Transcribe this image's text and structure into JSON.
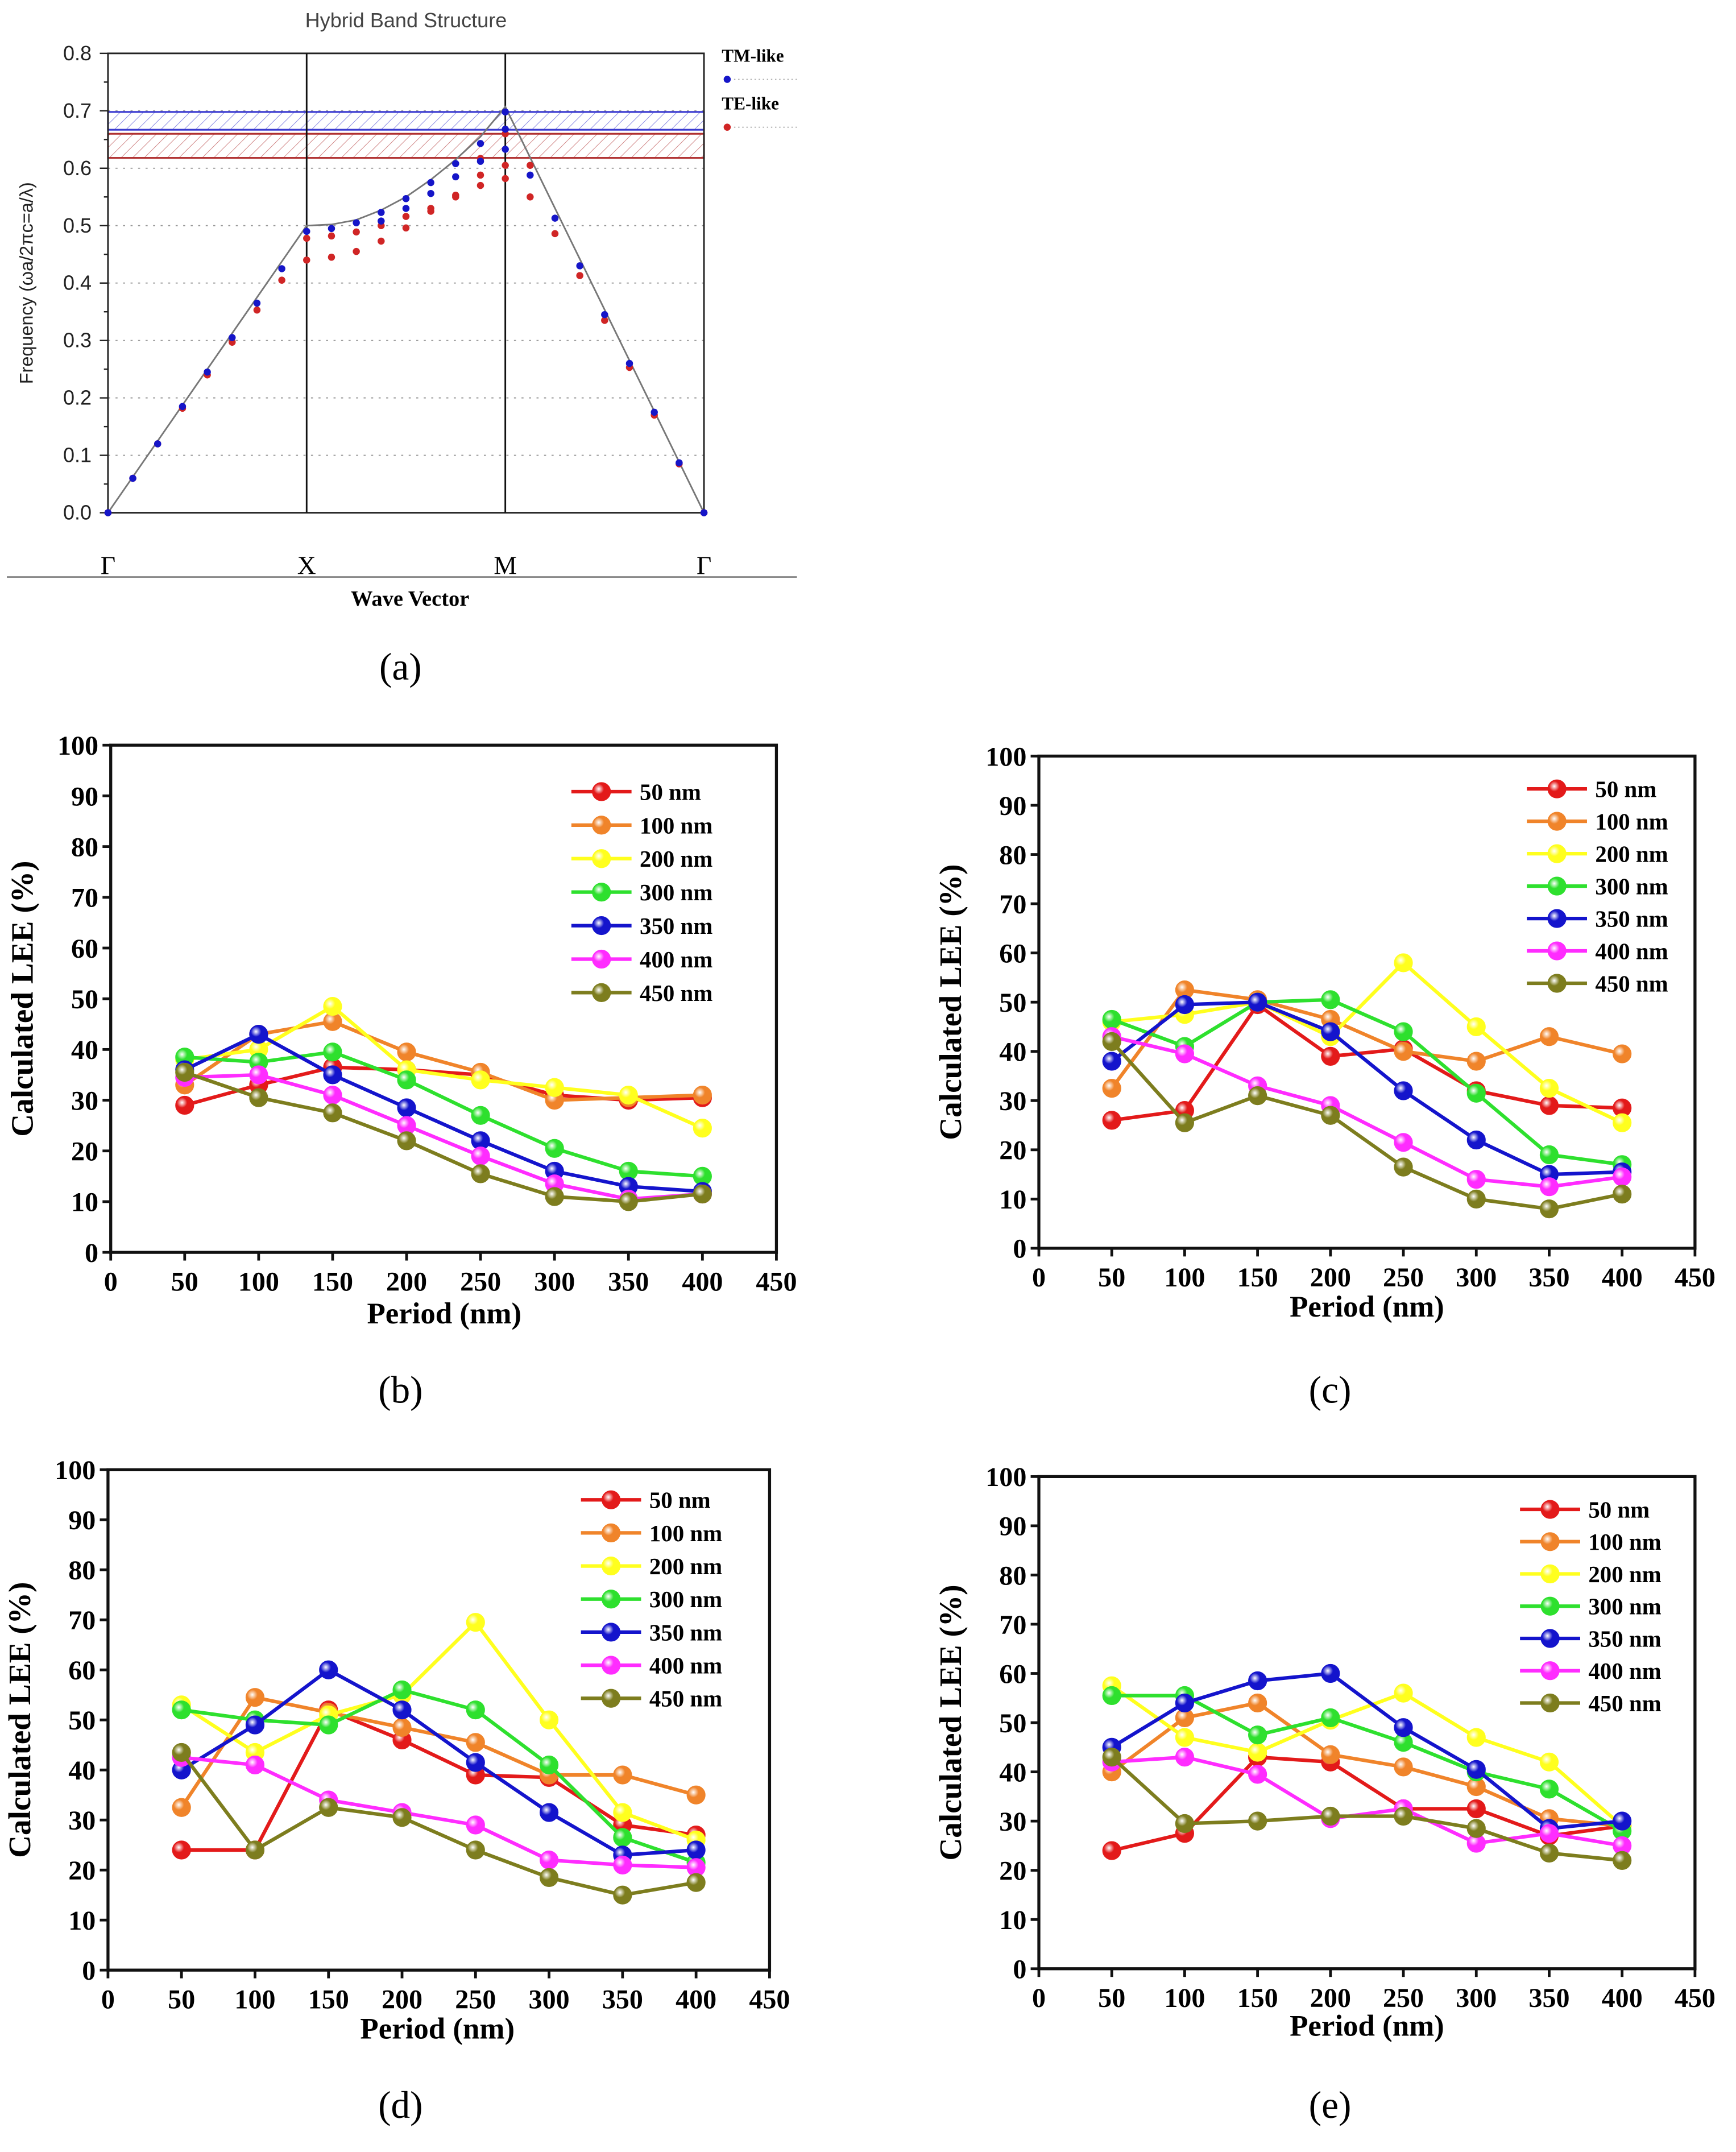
{
  "chart_data": [
    {
      "id": "a",
      "type": "scatter",
      "panel_label": "(a)",
      "title": "Hybrid Band Structure",
      "xlabel": "Wave Vector",
      "ylabel": "Frequency (ωa/2πc=a/λ)",
      "ylim": [
        0,
        0.8
      ],
      "yticks": [
        "0.0",
        "0.1",
        "0.2",
        "0.3",
        "0.4",
        "0.5",
        "0.6",
        "0.7",
        "0.8"
      ],
      "k_points": 24,
      "symmetry_points": [
        {
          "k": 0,
          "label": "Γ"
        },
        {
          "k": 8,
          "label": "X"
        },
        {
          "k": 16,
          "label": "M"
        },
        {
          "k": 24,
          "label": "Γ"
        }
      ],
      "grid": true,
      "legend_placement": "right-outside",
      "light_line": [
        [
          0,
          0
        ],
        [
          8,
          0.5
        ],
        [
          9,
          0.502
        ],
        [
          10,
          0.51
        ],
        [
          11,
          0.527
        ],
        [
          12,
          0.55
        ],
        [
          13,
          0.58
        ],
        [
          14,
          0.615
        ],
        [
          15,
          0.655
        ],
        [
          16,
          0.707
        ],
        [
          24,
          0
        ]
      ],
      "band_gaps": [
        {
          "name": "TM-like gap",
          "range": [
            0.667,
            0.698
          ],
          "color": "#3a3ad0"
        },
        {
          "name": "TE-like gap",
          "range": [
            0.618,
            0.66
          ],
          "color": "#b03030"
        }
      ],
      "series": [
        {
          "name": "TM-like",
          "color": "#1515c8",
          "points": [
            [
              0,
              0
            ],
            [
              1,
              0.06
            ],
            [
              2,
              0.12
            ],
            [
              3,
              0.185
            ],
            [
              4,
              0.245
            ],
            [
              5,
              0.305
            ],
            [
              6,
              0.365
            ],
            [
              7,
              0.425
            ],
            [
              8,
              0.49
            ],
            [
              9,
              0.495
            ],
            [
              10,
              0.505
            ],
            [
              11,
              0.523
            ],
            [
              12,
              0.547
            ],
            [
              13,
              0.575
            ],
            [
              14,
              0.608
            ],
            [
              15,
              0.643
            ],
            [
              16,
              0.698
            ],
            [
              16,
              0.668
            ],
            [
              16,
              0.633
            ],
            [
              11,
              0.508
            ],
            [
              12,
              0.53
            ],
            [
              13,
              0.556
            ],
            [
              14,
              0.585
            ],
            [
              15,
              0.612
            ],
            [
              17,
              0.588
            ],
            [
              18,
              0.513
            ],
            [
              19,
              0.43
            ],
            [
              20,
              0.345
            ],
            [
              21,
              0.26
            ],
            [
              22,
              0.175
            ],
            [
              23,
              0.087
            ],
            [
              24,
              0
            ]
          ]
        },
        {
          "name": "TE-like",
          "color": "#d02525",
          "points": [
            [
              0,
              0
            ],
            [
              1,
              0.06
            ],
            [
              2,
              0.12
            ],
            [
              3,
              0.182
            ],
            [
              4,
              0.24
            ],
            [
              5,
              0.297
            ],
            [
              6,
              0.353
            ],
            [
              7,
              0.405
            ],
            [
              8,
              0.478
            ],
            [
              8,
              0.44
            ],
            [
              9,
              0.482
            ],
            [
              9,
              0.445
            ],
            [
              10,
              0.489
            ],
            [
              10,
              0.455
            ],
            [
              11,
              0.5
            ],
            [
              11,
              0.473
            ],
            [
              12,
              0.516
            ],
            [
              12,
              0.496
            ],
            [
              13,
              0.53
            ],
            [
              13,
              0.525
            ],
            [
              14,
              0.553
            ],
            [
              14,
              0.55
            ],
            [
              15,
              0.617
            ],
            [
              15,
              0.588
            ],
            [
              15,
              0.57
            ],
            [
              16,
              0.66
            ],
            [
              16,
              0.605
            ],
            [
              16,
              0.582
            ],
            [
              17,
              0.605
            ],
            [
              17,
              0.55
            ],
            [
              18,
              0.486
            ],
            [
              19,
              0.413
            ],
            [
              20,
              0.335
            ],
            [
              21,
              0.253
            ],
            [
              22,
              0.17
            ],
            [
              23,
              0.085
            ],
            [
              24,
              0
            ]
          ]
        }
      ]
    },
    {
      "id": "b",
      "type": "line",
      "panel_label": "(b)",
      "xlabel": "Period (nm)",
      "ylabel": "Calculated LEE (%)",
      "xlim": [
        0,
        450
      ],
      "ylim": [
        0,
        100
      ],
      "legend_placement": "top-right",
      "xticks": [
        "0",
        "50",
        "100",
        "150",
        "200",
        "250",
        "300",
        "350",
        "400",
        "450"
      ],
      "yticks": [
        "0",
        "10",
        "20",
        "30",
        "40",
        "50",
        "60",
        "70",
        "80",
        "90",
        "100"
      ],
      "x": [
        50,
        100,
        150,
        200,
        250,
        300,
        350,
        400
      ],
      "series": [
        {
          "name": "50 nm",
          "color": "#e31a1a",
          "values": [
            29,
            33,
            36.5,
            36,
            35,
            31,
            30,
            30.5
          ]
        },
        {
          "name": "100 nm",
          "color": "#f0842a",
          "values": [
            33,
            43,
            45.5,
            39.5,
            35.5,
            30,
            30.5,
            31
          ]
        },
        {
          "name": "200 nm",
          "color": "#ffff1e",
          "values": [
            38,
            40,
            48.5,
            36,
            34,
            32.5,
            31,
            24.5
          ]
        },
        {
          "name": "300 nm",
          "color": "#2ee02e",
          "values": [
            38.5,
            37.5,
            39.5,
            34,
            27,
            20.5,
            16,
            15
          ]
        },
        {
          "name": "350 nm",
          "color": "#1414cc",
          "values": [
            36,
            43,
            35,
            28.5,
            22,
            16,
            13,
            12
          ]
        },
        {
          "name": "400 nm",
          "color": "#ff2cff",
          "values": [
            34.5,
            35,
            31,
            25,
            19,
            13.5,
            10.5,
            11.5
          ]
        },
        {
          "name": "450 nm",
          "color": "#7d7d1e",
          "values": [
            35.5,
            30.5,
            27.5,
            22,
            15.5,
            11,
            10,
            11.5
          ]
        }
      ]
    },
    {
      "id": "c",
      "type": "line",
      "panel_label": "(c)",
      "xlabel": "Period (nm)",
      "ylabel": "Calculated LEE (%)",
      "xlim": [
        0,
        450
      ],
      "ylim": [
        0,
        100
      ],
      "legend_placement": "top-right",
      "xticks": [
        "0",
        "50",
        "100",
        "150",
        "200",
        "250",
        "300",
        "350",
        "400",
        "450"
      ],
      "yticks": [
        "0",
        "10",
        "20",
        "30",
        "40",
        "50",
        "60",
        "70",
        "80",
        "90",
        "100"
      ],
      "x": [
        50,
        100,
        150,
        200,
        250,
        300,
        350,
        400
      ],
      "series": [
        {
          "name": "50 nm",
          "color": "#e31a1a",
          "values": [
            26,
            28,
            49.5,
            39,
            40.5,
            32,
            29,
            28.5
          ]
        },
        {
          "name": "100 nm",
          "color": "#f0842a",
          "values": [
            32.5,
            52.5,
            50.5,
            46.5,
            40,
            38,
            43,
            39.5
          ]
        },
        {
          "name": "200 nm",
          "color": "#ffff1e",
          "values": [
            46,
            47.5,
            50,
            43,
            58,
            45,
            32.5,
            25.5
          ]
        },
        {
          "name": "300 nm",
          "color": "#2ee02e",
          "values": [
            46.5,
            41,
            50,
            50.5,
            44,
            31.5,
            19,
            17
          ]
        },
        {
          "name": "350 nm",
          "color": "#1414cc",
          "values": [
            38,
            49.5,
            50,
            44,
            32,
            22,
            15,
            15.5
          ]
        },
        {
          "name": "400 nm",
          "color": "#ff2cff",
          "values": [
            43,
            39.5,
            33,
            29,
            21.5,
            14,
            12.5,
            14.5
          ]
        },
        {
          "name": "450 nm",
          "color": "#7d7d1e",
          "values": [
            42,
            25.5,
            31,
            27,
            16.5,
            10,
            8,
            11
          ]
        }
      ]
    },
    {
      "id": "d",
      "type": "line",
      "panel_label": "(d)",
      "xlabel": "Period (nm)",
      "ylabel": "Calculated LEE (%)",
      "xlim": [
        0,
        450
      ],
      "ylim": [
        0,
        100
      ],
      "legend_placement": "top-right",
      "xticks": [
        "0",
        "50",
        "100",
        "150",
        "200",
        "250",
        "300",
        "350",
        "400",
        "450"
      ],
      "yticks": [
        "0",
        "10",
        "20",
        "30",
        "40",
        "50",
        "60",
        "70",
        "80",
        "90",
        "100"
      ],
      "x": [
        50,
        100,
        150,
        200,
        250,
        300,
        350,
        400
      ],
      "series": [
        {
          "name": "50 nm",
          "color": "#e31a1a",
          "values": [
            24,
            24,
            52,
            46,
            39,
            38.5,
            29,
            27
          ]
        },
        {
          "name": "100 nm",
          "color": "#f0842a",
          "values": [
            32.5,
            54.5,
            51.5,
            48.5,
            45.5,
            39,
            39,
            35
          ]
        },
        {
          "name": "200 nm",
          "color": "#ffff1e",
          "values": [
            53,
            43.5,
            51,
            55,
            69.5,
            50,
            31.5,
            26
          ]
        },
        {
          "name": "300 nm",
          "color": "#2ee02e",
          "values": [
            52,
            50,
            49,
            56,
            52,
            41,
            26.5,
            21.5
          ]
        },
        {
          "name": "350 nm",
          "color": "#1414cc",
          "values": [
            40,
            49,
            60,
            52,
            41.5,
            31.5,
            23,
            24
          ]
        },
        {
          "name": "400 nm",
          "color": "#ff2cff",
          "values": [
            42.5,
            41,
            34,
            31.5,
            29,
            22,
            21,
            20.5
          ]
        },
        {
          "name": "450 nm",
          "color": "#7d7d1e",
          "values": [
            43.5,
            24,
            32.5,
            30.5,
            24,
            18.5,
            15,
            17.5
          ]
        }
      ]
    },
    {
      "id": "e",
      "type": "line",
      "panel_label": "(e)",
      "xlabel": "Period (nm)",
      "ylabel": "Calculated LEE (%)",
      "xlim": [
        0,
        450
      ],
      "ylim": [
        0,
        100
      ],
      "legend_placement": "top-right",
      "xticks": [
        "0",
        "50",
        "100",
        "150",
        "200",
        "250",
        "300",
        "350",
        "400",
        "450"
      ],
      "yticks": [
        "0",
        "10",
        "20",
        "30",
        "40",
        "50",
        "60",
        "70",
        "80",
        "90",
        "100"
      ],
      "x": [
        50,
        100,
        150,
        200,
        250,
        300,
        350,
        400
      ],
      "series": [
        {
          "name": "50 nm",
          "color": "#e31a1a",
          "values": [
            24,
            27.5,
            43,
            42,
            32.5,
            32.5,
            27,
            29
          ]
        },
        {
          "name": "100 nm",
          "color": "#f0842a",
          "values": [
            40,
            51,
            54,
            43.5,
            41,
            37,
            30.5,
            29
          ]
        },
        {
          "name": "200 nm",
          "color": "#ffff1e",
          "values": [
            57.5,
            47,
            44,
            50.5,
            56,
            47,
            42,
            29
          ]
        },
        {
          "name": "300 nm",
          "color": "#2ee02e",
          "values": [
            55.5,
            55.5,
            47.5,
            51,
            46,
            40,
            36.5,
            28
          ]
        },
        {
          "name": "350 nm",
          "color": "#1414cc",
          "values": [
            45,
            54,
            58.5,
            60,
            49,
            40.5,
            28.5,
            30
          ]
        },
        {
          "name": "400 nm",
          "color": "#ff2cff",
          "values": [
            42,
            43,
            39.5,
            30.5,
            32.5,
            25.5,
            27.5,
            25
          ]
        },
        {
          "name": "450 nm",
          "color": "#7d7d1e",
          "values": [
            43,
            29.5,
            30,
            31,
            31,
            28.5,
            23.5,
            22
          ]
        }
      ]
    }
  ]
}
